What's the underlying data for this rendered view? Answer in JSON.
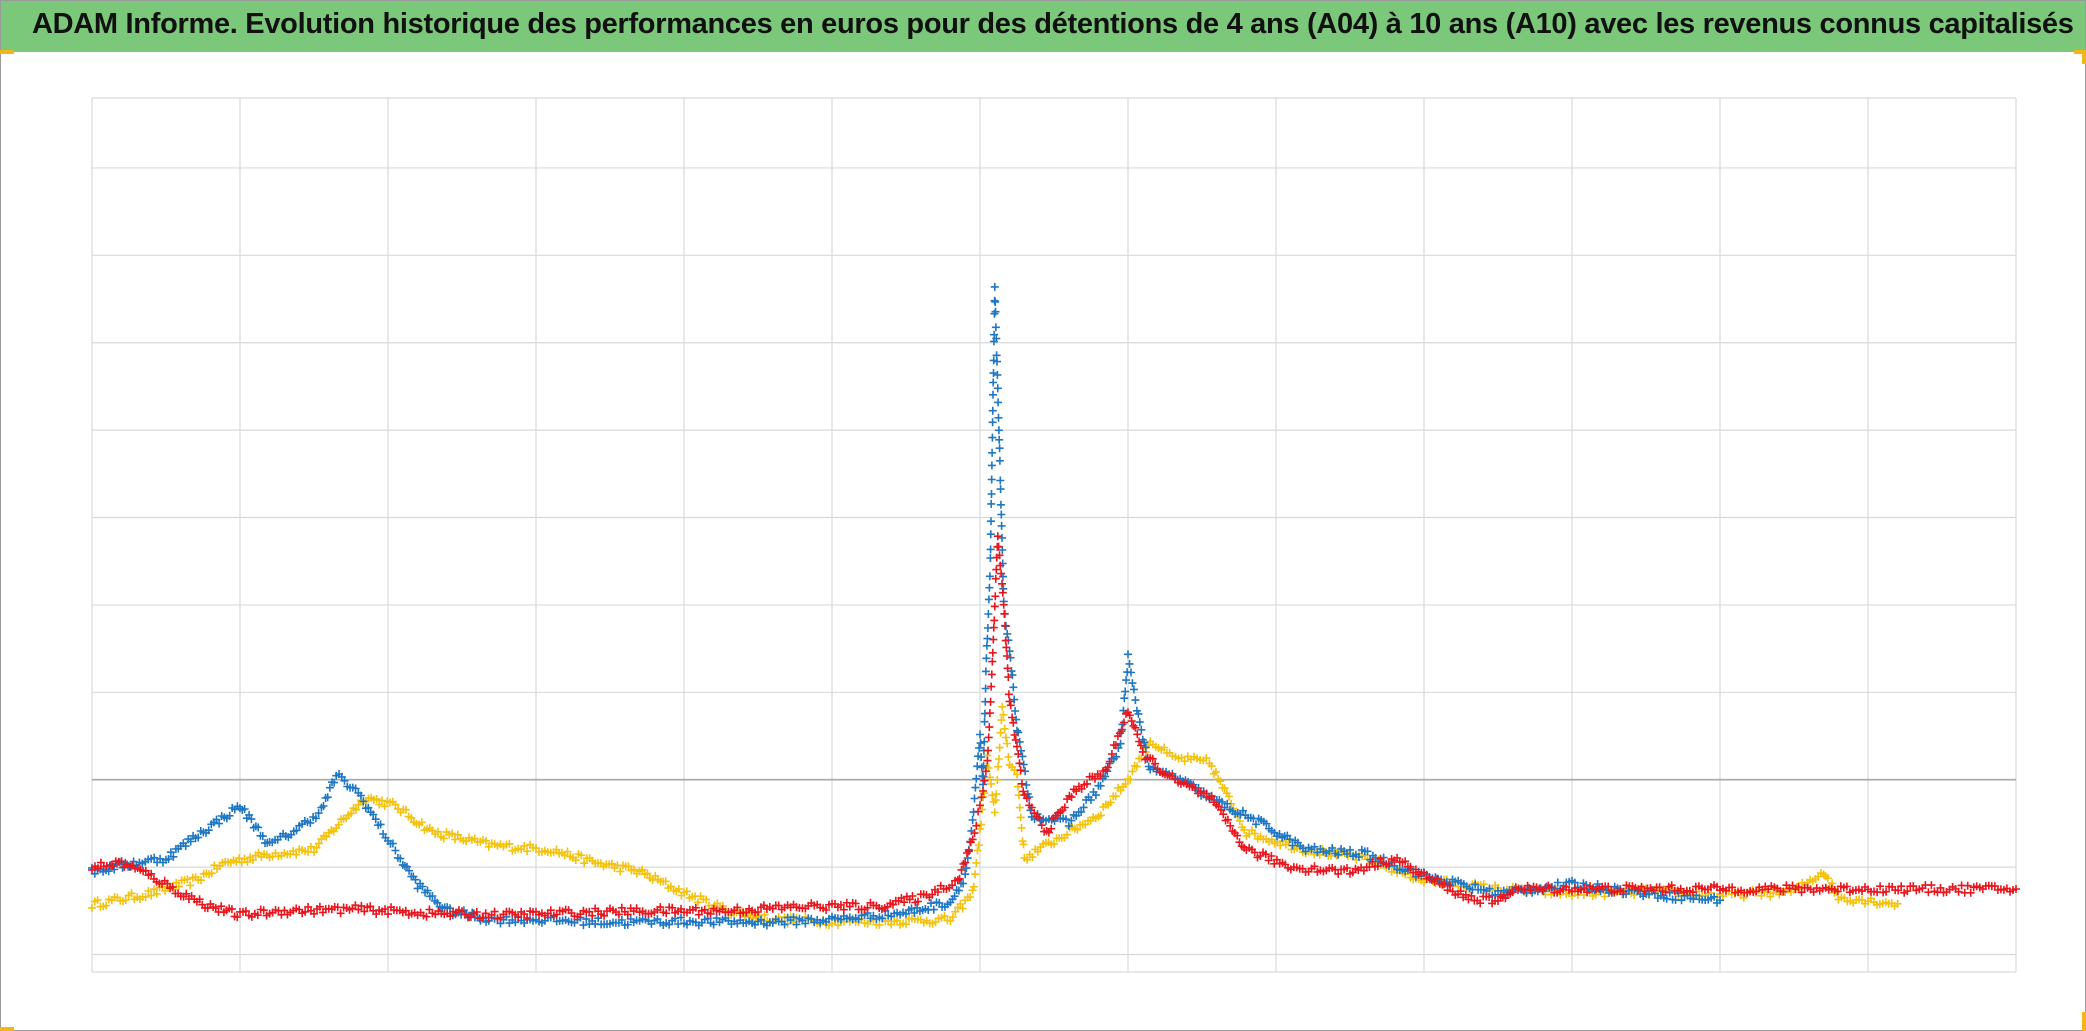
{
  "title": "ADAM Informe. Evolution historique des performances en euros pour des détentions de 4 ans (A04) à 10 ans (A10) avec les revenus connus capitalisés",
  "colors": {
    "title_bg": "#7cc87a",
    "corner": "#f2b51a",
    "grid": "#d9d9d9",
    "zero_line": "#a6a6a6"
  },
  "chart_data": {
    "type": "scatter",
    "marker": "cross",
    "title": "ADAM Informe. Evolution historique des performances en euros pour des détentions de 4 ans (A04) à 10 ans (A10) avec les revenus connus capitalisés",
    "xlabel": "",
    "ylabel": "",
    "xlim": [
      0,
      13
    ],
    "ylim": [
      -2.2,
      7.8
    ],
    "grid": true,
    "legend": "none",
    "reference_line_y": 0,
    "series": [
      {
        "color": "#f4c20d",
        "points": [
          [
            0.0,
            -1.43
          ],
          [
            0.4,
            -1.3
          ],
          [
            0.7,
            -1.15
          ],
          [
            0.9,
            -0.95
          ],
          [
            1.2,
            -0.85
          ],
          [
            1.5,
            -0.8
          ],
          [
            1.7,
            -0.45
          ],
          [
            1.85,
            -0.2
          ],
          [
            2.05,
            -0.3
          ],
          [
            2.3,
            -0.6
          ],
          [
            2.7,
            -0.75
          ],
          [
            3.1,
            -0.8
          ],
          [
            3.4,
            -0.95
          ],
          [
            3.7,
            -1.05
          ],
          [
            4.0,
            -1.3
          ],
          [
            4.3,
            -1.5
          ],
          [
            4.6,
            -1.6
          ],
          [
            5.0,
            -1.62
          ],
          [
            5.4,
            -1.62
          ],
          [
            5.8,
            -1.6
          ],
          [
            5.95,
            -1.3
          ],
          [
            6.0,
            -0.6
          ],
          [
            6.05,
            0.25
          ],
          [
            6.1,
            -0.4
          ],
          [
            6.15,
            0.8
          ],
          [
            6.2,
            0.2
          ],
          [
            6.25,
            0.05
          ],
          [
            6.3,
            -0.9
          ],
          [
            6.5,
            -0.7
          ],
          [
            6.8,
            -0.4
          ],
          [
            7.0,
            0.0
          ],
          [
            7.15,
            0.45
          ],
          [
            7.3,
            0.25
          ],
          [
            7.55,
            0.2
          ],
          [
            7.8,
            -0.6
          ],
          [
            8.2,
            -0.8
          ],
          [
            8.6,
            -0.9
          ],
          [
            9.0,
            -1.15
          ],
          [
            9.5,
            -1.25
          ],
          [
            10.0,
            -1.3
          ],
          [
            10.5,
            -1.28
          ],
          [
            11.0,
            -1.32
          ],
          [
            11.5,
            -1.28
          ],
          [
            11.7,
            -1.05
          ],
          [
            11.8,
            -1.35
          ],
          [
            12.0,
            -1.38
          ],
          [
            12.2,
            -1.42
          ]
        ]
      },
      {
        "color": "#1f77c4",
        "points": [
          [
            0.0,
            -1.05
          ],
          [
            0.3,
            -0.95
          ],
          [
            0.5,
            -0.9
          ],
          [
            0.7,
            -0.65
          ],
          [
            1.0,
            -0.3
          ],
          [
            1.2,
            -0.75
          ],
          [
            1.4,
            -0.55
          ],
          [
            1.55,
            -0.35
          ],
          [
            1.65,
            0.05
          ],
          [
            1.8,
            -0.15
          ],
          [
            1.95,
            -0.55
          ],
          [
            2.1,
            -0.95
          ],
          [
            2.2,
            -1.2
          ],
          [
            2.4,
            -1.5
          ],
          [
            2.7,
            -1.6
          ],
          [
            3.0,
            -1.6
          ],
          [
            3.5,
            -1.63
          ],
          [
            4.0,
            -1.62
          ],
          [
            4.5,
            -1.63
          ],
          [
            5.0,
            -1.6
          ],
          [
            5.5,
            -1.52
          ],
          [
            5.8,
            -1.4
          ],
          [
            5.9,
            -1.1
          ],
          [
            5.95,
            -0.5
          ],
          [
            6.0,
            0.5
          ],
          [
            6.02,
            -0.1
          ],
          [
            6.04,
            1.2
          ],
          [
            6.07,
            2.5
          ],
          [
            6.1,
            5.6
          ],
          [
            6.13,
            3.9
          ],
          [
            6.16,
            2.0
          ],
          [
            6.2,
            1.5
          ],
          [
            6.25,
            0.6
          ],
          [
            6.35,
            -0.4
          ],
          [
            6.6,
            -0.5
          ],
          [
            6.8,
            -0.1
          ],
          [
            6.95,
            0.4
          ],
          [
            7.0,
            1.4
          ],
          [
            7.05,
            0.9
          ],
          [
            7.15,
            0.1
          ],
          [
            7.3,
            0.05
          ],
          [
            7.6,
            -0.25
          ],
          [
            7.9,
            -0.5
          ],
          [
            8.2,
            -0.8
          ],
          [
            8.6,
            -0.85
          ],
          [
            9.0,
            -1.1
          ],
          [
            9.5,
            -1.3
          ],
          [
            10.0,
            -1.2
          ],
          [
            10.5,
            -1.3
          ],
          [
            11.0,
            -1.38
          ]
        ]
      },
      {
        "color": "#e8171e",
        "points": [
          [
            0.0,
            -1.0
          ],
          [
            0.2,
            -0.95
          ],
          [
            0.4,
            -1.1
          ],
          [
            0.6,
            -1.3
          ],
          [
            0.8,
            -1.45
          ],
          [
            1.0,
            -1.55
          ],
          [
            1.3,
            -1.5
          ],
          [
            1.8,
            -1.48
          ],
          [
            2.3,
            -1.53
          ],
          [
            2.8,
            -1.55
          ],
          [
            3.3,
            -1.52
          ],
          [
            3.8,
            -1.5
          ],
          [
            4.3,
            -1.5
          ],
          [
            4.8,
            -1.45
          ],
          [
            5.3,
            -1.45
          ],
          [
            5.6,
            -1.35
          ],
          [
            5.85,
            -1.15
          ],
          [
            5.95,
            -0.7
          ],
          [
            6.0,
            -0.3
          ],
          [
            6.05,
            0.2
          ],
          [
            6.08,
            1.2
          ],
          [
            6.12,
            2.8
          ],
          [
            6.16,
            2.0
          ],
          [
            6.2,
            0.9
          ],
          [
            6.3,
            -0.2
          ],
          [
            6.45,
            -0.6
          ],
          [
            6.65,
            -0.1
          ],
          [
            6.85,
            0.1
          ],
          [
            7.0,
            0.8
          ],
          [
            7.1,
            0.3
          ],
          [
            7.3,
            0.0
          ],
          [
            7.55,
            -0.2
          ],
          [
            7.8,
            -0.8
          ],
          [
            8.1,
            -1.0
          ],
          [
            8.5,
            -1.05
          ],
          [
            8.8,
            -0.9
          ],
          [
            9.0,
            -1.1
          ],
          [
            9.3,
            -1.35
          ],
          [
            9.5,
            -1.4
          ],
          [
            9.6,
            -1.25
          ],
          [
            10.0,
            -1.25
          ],
          [
            11.0,
            -1.25
          ],
          [
            12.0,
            -1.25
          ],
          [
            13.0,
            -1.25
          ]
        ]
      }
    ]
  }
}
